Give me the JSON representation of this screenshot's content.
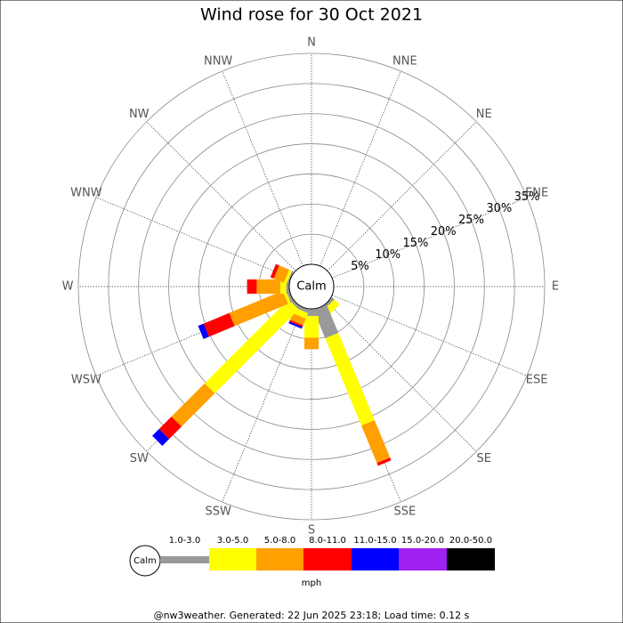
{
  "chart_data": {
    "type": "windrose",
    "title": "Wind rose for 30 Oct 2021",
    "center_label": "Calm",
    "unit_label": "mph",
    "footer": "@nw3weather. Generated: 22 Jun 2025 23:18; Load time: 0.12 s",
    "directions": [
      "N",
      "NNE",
      "NE",
      "ENE",
      "E",
      "ESE",
      "SE",
      "SSE",
      "S",
      "SSW",
      "SW",
      "WSW",
      "W",
      "WNW",
      "NW",
      "NNW"
    ],
    "rlim": [
      0,
      35
    ],
    "rticks": [
      {
        "value": 5,
        "label": "5%"
      },
      {
        "value": 10,
        "label": "10%"
      },
      {
        "value": 15,
        "label": "15%"
      },
      {
        "value": 20,
        "label": "20%"
      },
      {
        "value": 25,
        "label": "25%"
      },
      {
        "value": 30,
        "label": "30%"
      },
      {
        "value": 35,
        "label": "35%"
      }
    ],
    "series": [
      {
        "name": "1.0-3.0",
        "color": "#999999",
        "values": [
          0,
          0,
          0,
          0,
          0,
          0,
          0.5,
          5.1,
          1.2,
          0.6,
          0.5,
          0.5,
          0.5,
          0.3,
          0,
          0
        ]
      },
      {
        "name": "3.0-5.0",
        "color": "#ffff00",
        "values": [
          0,
          0,
          0,
          0,
          0,
          0,
          1.2,
          15.7,
          3.6,
          1,
          19.7,
          0.5,
          1,
          0.5,
          0,
          0
        ]
      },
      {
        "name": "5.0-8.0",
        "color": "#ff9f00",
        "values": [
          0,
          0,
          0,
          0,
          0,
          0,
          0,
          6.7,
          1.9,
          1.2,
          7.8,
          9.6,
          3.9,
          1.8,
          0,
          0
        ]
      },
      {
        "name": "8.0-11.0",
        "color": "#ff0000",
        "values": [
          0,
          0,
          0,
          0,
          0,
          0,
          0,
          0.5,
          0,
          0.3,
          2.9,
          4.6,
          1.6,
          0.6,
          0,
          0
        ]
      },
      {
        "name": "11.0-15.0",
        "color": "#0000ff",
        "values": [
          0,
          0,
          0,
          0,
          0,
          0,
          0,
          0,
          0,
          0.3,
          1.6,
          1,
          0,
          0,
          0,
          0
        ]
      },
      {
        "name": "15.0-20.0",
        "color": "#a020f0",
        "values": [
          0,
          0,
          0,
          0,
          0,
          0,
          0,
          0,
          0,
          0,
          0,
          0,
          0,
          0,
          0,
          0
        ]
      },
      {
        "name": "20.0-50.0",
        "color": "#000000",
        "values": [
          0,
          0,
          0,
          0,
          0,
          0,
          0,
          0,
          0,
          0,
          0,
          0,
          0,
          0,
          0,
          0
        ]
      }
    ]
  }
}
